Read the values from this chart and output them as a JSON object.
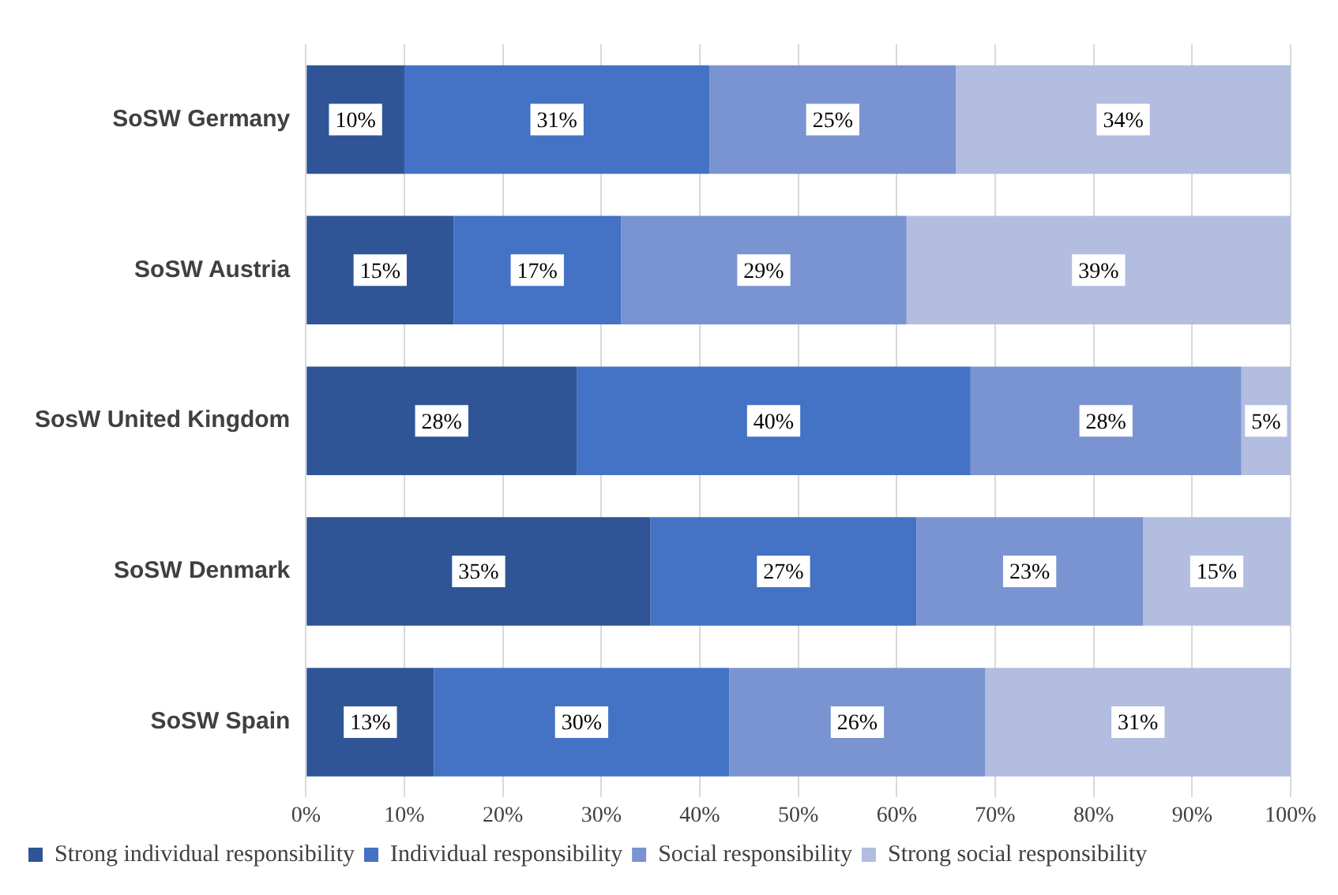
{
  "chart_data": {
    "type": "bar",
    "orientation": "horizontal",
    "stacked": true,
    "categories": [
      "SoSW Germany",
      "SoSW Austria",
      "SosW United Kingdom",
      "SoSW Denmark",
      "SoSW Spain"
    ],
    "series": [
      {
        "name": "Strong individual responsibility",
        "color": "#2f5597",
        "values": [
          10,
          15,
          27.5,
          35,
          13
        ],
        "value_labels": [
          "10%",
          "15%",
          "28%",
          "35%",
          "13%"
        ]
      },
      {
        "name": "Individual responsibility",
        "color": "#4472c4",
        "values": [
          31,
          17,
          40,
          27,
          30
        ],
        "value_labels": [
          "31%",
          "17%",
          "40%",
          "27%",
          "30%"
        ]
      },
      {
        "name": "Social responsibility",
        "color": "#7a93d1",
        "values": [
          25,
          29,
          27.5,
          23,
          26
        ],
        "value_labels": [
          "25%",
          "29%",
          "28%",
          "23%",
          "26%"
        ]
      },
      {
        "name": "Strong social responsibility",
        "color": "#b2bde0",
        "values": [
          34,
          39,
          5,
          15,
          31
        ],
        "value_labels": [
          "34%",
          "39%",
          "5%",
          "15%",
          "31%"
        ]
      }
    ],
    "xlim": [
      0,
      100
    ],
    "xticks": [
      {
        "value": 0,
        "label": "0%"
      },
      {
        "value": 10,
        "label": "10%"
      },
      {
        "value": 20,
        "label": "20%"
      },
      {
        "value": 30,
        "label": "30%"
      },
      {
        "value": 40,
        "label": "40%"
      },
      {
        "value": 50,
        "label": "50%"
      },
      {
        "value": 60,
        "label": "60%"
      },
      {
        "value": 70,
        "label": "70%"
      },
      {
        "value": 80,
        "label": "80%"
      },
      {
        "value": 90,
        "label": "90%"
      },
      {
        "value": 100,
        "label": "100%"
      }
    ],
    "grid": "x",
    "legend": "bottom"
  }
}
